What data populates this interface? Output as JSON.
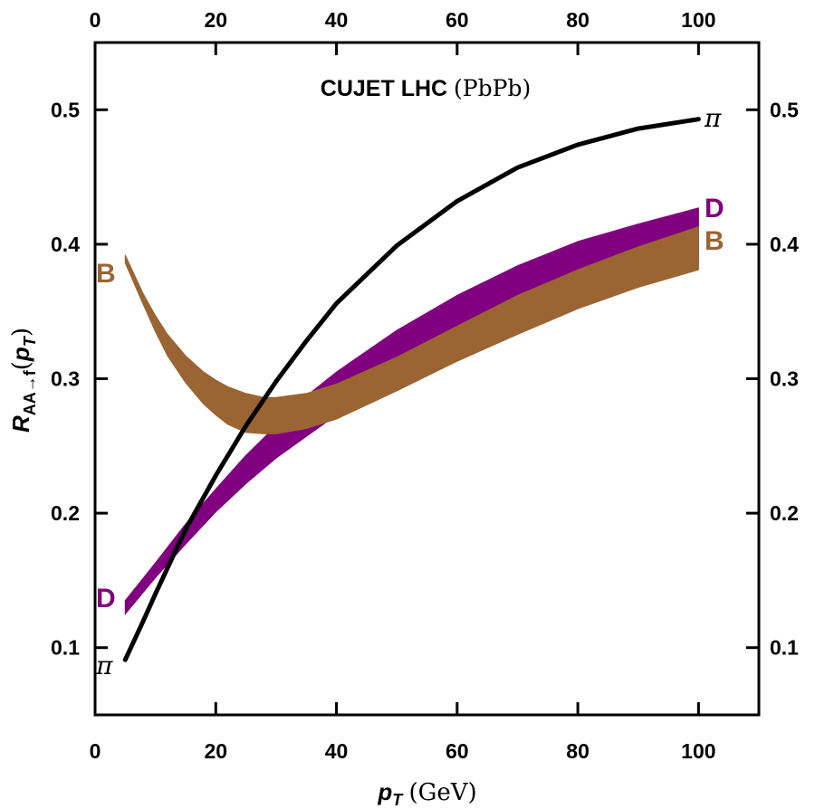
{
  "chart_data": {
    "type": "line",
    "title": "CUJET LHC",
    "title_suffix": "(PbPb)",
    "xlabel": {
      "var": "p",
      "sub": "T",
      "unit": "(GeV)"
    },
    "ylabel": {
      "var": "R",
      "sub": "AA→f",
      "arg_open": "(",
      "arg_var": "p",
      "arg_sub": "T",
      "arg_close": ")"
    },
    "xlim": [
      0,
      110
    ],
    "ylim": [
      0.05,
      0.55
    ],
    "xticks": [
      0,
      20,
      40,
      60,
      80,
      100
    ],
    "xtick_labels": [
      "0",
      "20",
      "40",
      "60",
      "80",
      "100"
    ],
    "yticks": [
      0.1,
      0.2,
      0.3,
      0.4,
      0.5
    ],
    "ytick_labels": [
      "0.1",
      "0.2",
      "0.3",
      "0.4",
      "0.5"
    ],
    "colors": {
      "pi": "#000000",
      "D": "#800080",
      "B": "#9b6433"
    },
    "series": [
      {
        "name": "D",
        "kind": "band",
        "x": [
          5,
          10,
          15,
          20,
          25,
          30,
          35,
          40,
          50,
          60,
          70,
          80,
          90,
          100
        ],
        "upper": [
          0.135,
          0.163,
          0.192,
          0.218,
          0.243,
          0.265,
          0.287,
          0.305,
          0.336,
          0.362,
          0.384,
          0.402,
          0.415,
          0.427
        ],
        "lower": [
          0.125,
          0.152,
          0.177,
          0.201,
          0.222,
          0.241,
          0.257,
          0.273,
          0.303,
          0.327,
          0.346,
          0.361,
          0.374,
          0.386
        ]
      },
      {
        "name": "B",
        "kind": "band",
        "x": [
          5,
          8,
          10,
          12,
          15,
          18,
          20,
          22,
          25,
          28,
          30,
          35,
          40,
          50,
          60,
          70,
          80,
          90,
          100
        ],
        "upper": [
          0.392,
          0.363,
          0.347,
          0.333,
          0.317,
          0.305,
          0.299,
          0.294,
          0.289,
          0.286,
          0.286,
          0.289,
          0.296,
          0.316,
          0.339,
          0.362,
          0.381,
          0.398,
          0.413
        ],
        "lower": [
          0.386,
          0.355,
          0.335,
          0.317,
          0.297,
          0.281,
          0.273,
          0.266,
          0.26,
          0.259,
          0.259,
          0.263,
          0.27,
          0.291,
          0.313,
          0.333,
          0.352,
          0.368,
          0.381
        ]
      },
      {
        "name": "π",
        "kind": "line",
        "x": [
          5,
          8,
          10,
          15,
          20,
          25,
          30,
          35,
          40,
          50,
          60,
          70,
          80,
          90,
          100
        ],
        "y": [
          0.091,
          0.12,
          0.14,
          0.188,
          0.228,
          0.265,
          0.298,
          0.328,
          0.356,
          0.399,
          0.432,
          0.457,
          0.474,
          0.486,
          0.493
        ]
      }
    ],
    "labels": {
      "D": "D",
      "B": "B",
      "pi": "π"
    }
  }
}
